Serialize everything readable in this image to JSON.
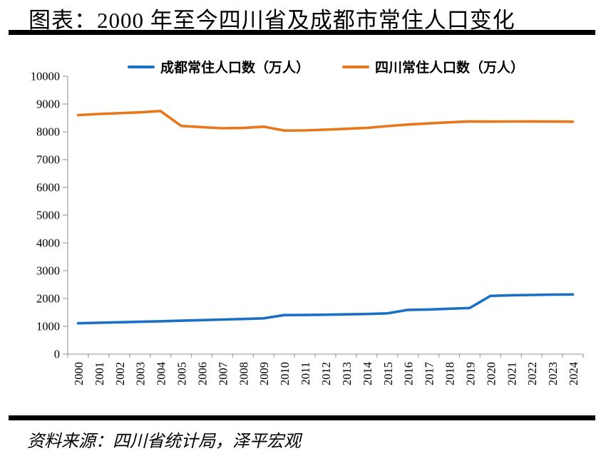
{
  "header": {
    "title": "图表：2000 年至今四川省及成都市常住人口变化"
  },
  "footer": {
    "source": "资料来源：四川省统计局，泽平宏观"
  },
  "colors": {
    "chengdu_line": "#1B6FC4",
    "sichuan_line": "#E8761B",
    "axis": "#A6A6A6",
    "divider": "#000000"
  },
  "chart_data": {
    "type": "line",
    "title": "图表：2000 年至今四川省及成都市常住人口变化",
    "xlabel": "",
    "ylabel": "",
    "x": [
      2000,
      2001,
      2002,
      2003,
      2004,
      2005,
      2006,
      2007,
      2008,
      2009,
      2010,
      2011,
      2012,
      2013,
      2014,
      2015,
      2016,
      2017,
      2018,
      2019,
      2020,
      2021,
      2022,
      2023,
      2024
    ],
    "series": [
      {
        "name": "成都常住人口数（万人）",
        "color": "#1B6FC4",
        "values": [
          1110,
          1128,
          1145,
          1163,
          1182,
          1202,
          1223,
          1244,
          1265,
          1287,
          1405,
          1408,
          1418,
          1430,
          1443,
          1466,
          1592,
          1605,
          1633,
          1658,
          2094,
          2119,
          2127,
          2140,
          2147
        ]
      },
      {
        "name": "四川常住人口数（万人）",
        "color": "#E8761B",
        "values": [
          8602,
          8640,
          8673,
          8700,
          8750,
          8212,
          8169,
          8127,
          8138,
          8185,
          8045,
          8050,
          8076,
          8107,
          8140,
          8204,
          8262,
          8302,
          8341,
          8375,
          8367,
          8372,
          8374,
          8368,
          8364
        ]
      }
    ],
    "ylim": [
      0,
      10000
    ],
    "ytick_step": 1000,
    "grid": false,
    "legend_position": "top",
    "axis_color": "#A6A6A6"
  }
}
